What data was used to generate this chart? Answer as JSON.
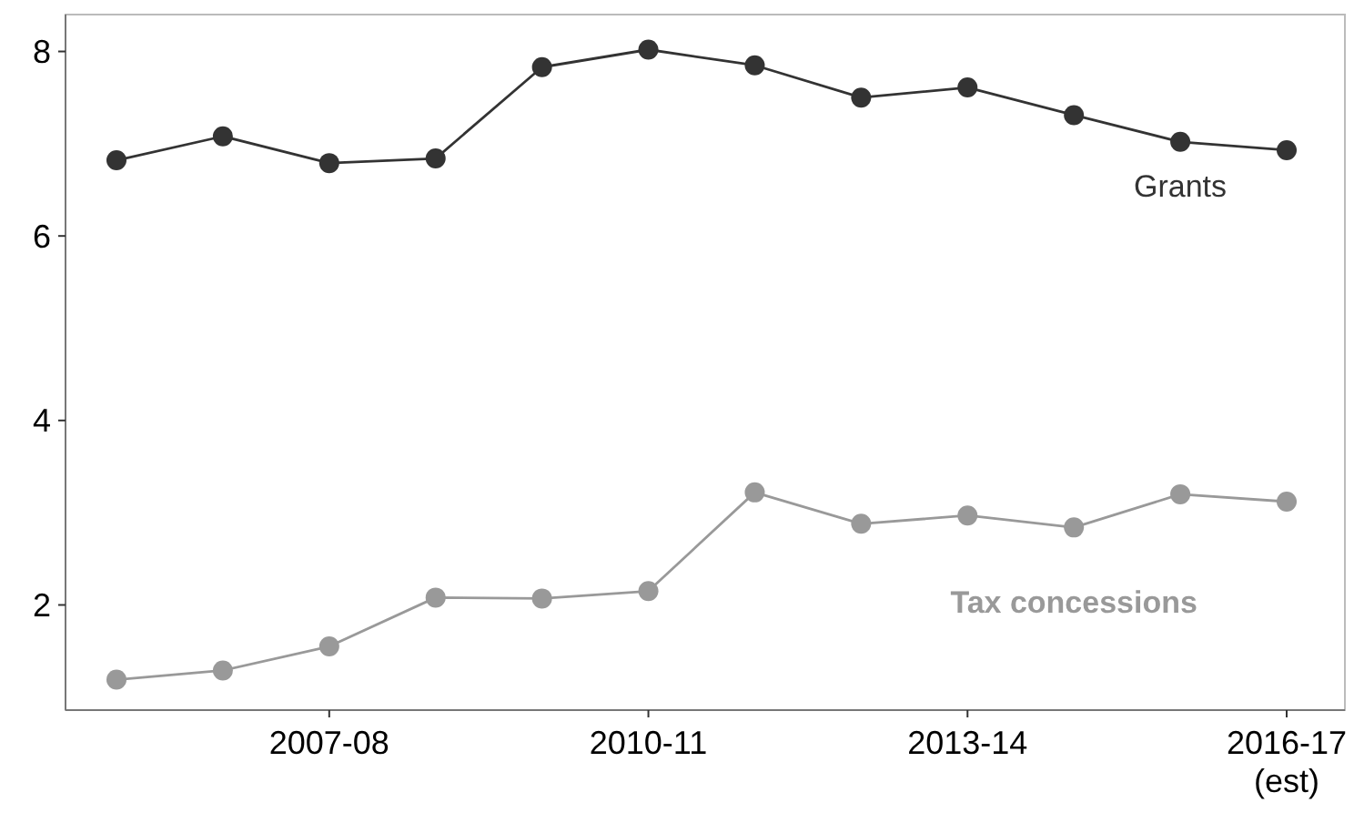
{
  "chart_data": {
    "type": "line",
    "categories": [
      null,
      null,
      "2007-08",
      null,
      null,
      "2010-11",
      null,
      null,
      "2013-14",
      null,
      null,
      "2016-17\n(est)"
    ],
    "series": [
      {
        "name": "Grants",
        "color": "#333333",
        "values": [
          6.82,
          7.08,
          6.79,
          6.84,
          7.83,
          8.02,
          7.85,
          7.5,
          7.61,
          7.31,
          7.02,
          6.93
        ]
      },
      {
        "name": "Tax concessions",
        "color": "#999999",
        "values": [
          1.19,
          1.29,
          1.55,
          2.08,
          2.07,
          2.15,
          3.22,
          2.88,
          2.97,
          2.84,
          3.2,
          3.12
        ]
      }
    ],
    "ylim": [
      0.86,
      8.4
    ],
    "yticks": [
      2,
      4,
      6,
      8
    ],
    "grid": false,
    "marker": "circle",
    "line_style": "solid"
  }
}
